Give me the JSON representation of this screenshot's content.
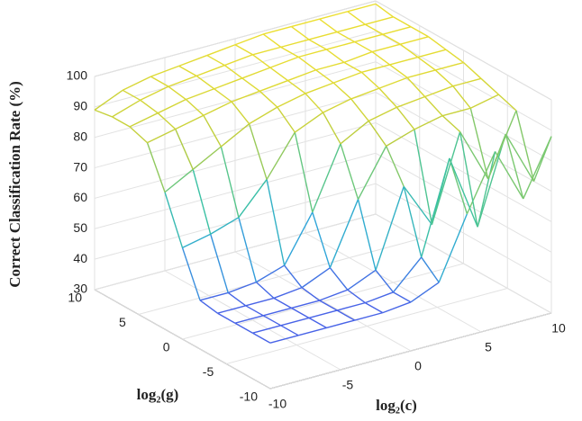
{
  "chart_data": {
    "type": "surface",
    "zlabel": "Correct Classification Rate (%)",
    "xlabel": "log₂(c)",
    "ylabel": "log₂(g)",
    "x": [
      -10,
      -8,
      -6,
      -4,
      -2,
      0,
      2,
      4,
      6,
      8,
      10
    ],
    "y": [
      -10,
      -8,
      -6,
      -4,
      -2,
      0,
      2,
      4,
      6,
      8,
      10
    ],
    "z": [
      [
        45,
        45,
        45,
        45,
        45,
        46,
        50,
        70,
        88,
        70,
        88
      ],
      [
        45,
        45,
        45,
        45,
        45,
        46,
        55,
        85,
        60,
        88,
        70
      ],
      [
        45,
        45,
        45,
        45,
        46,
        50,
        75,
        60,
        88,
        70,
        90
      ],
      [
        45,
        45,
        45,
        46,
        50,
        70,
        85,
        88,
        90,
        90,
        92
      ],
      [
        46,
        46,
        47,
        50,
        65,
        85,
        90,
        92,
        93,
        94,
        94
      ],
      [
        60,
        62,
        65,
        75,
        88,
        92,
        94,
        95,
        96,
        96,
        96
      ],
      [
        75,
        80,
        85,
        90,
        93,
        95,
        96,
        97,
        97,
        97,
        97
      ],
      [
        88,
        90,
        92,
        94,
        95,
        96,
        97,
        97,
        98,
        98,
        98
      ],
      [
        90,
        92,
        94,
        95,
        96,
        97,
        98,
        98,
        98,
        98,
        98
      ],
      [
        90,
        93,
        95,
        96,
        97,
        98,
        98,
        98,
        98,
        98,
        98
      ],
      [
        89,
        93,
        95,
        96,
        97,
        98,
        99,
        99,
        99,
        99,
        99
      ]
    ],
    "xlim": [
      -10,
      10
    ],
    "xticks": [
      -10,
      -5,
      0,
      5,
      10
    ],
    "ylim": [
      -10,
      10
    ],
    "yticks": [
      -10,
      -5,
      0,
      5,
      10
    ],
    "zlim": [
      30,
      100
    ],
    "zticks": [
      30,
      40,
      50,
      60,
      70,
      80,
      90,
      100
    ],
    "grid": true,
    "colormap": [
      "#3e26a8",
      "#4a5ee8",
      "#2fa8d8",
      "#3cc3a0",
      "#b8cc40",
      "#f0e030"
    ]
  }
}
